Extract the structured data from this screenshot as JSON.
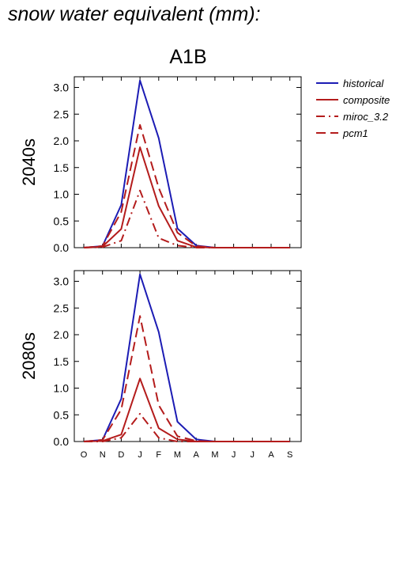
{
  "page": {
    "title": "snow water equivalent (mm):",
    "scenario": "A1B"
  },
  "colors": {
    "historical": "#1c1cb4",
    "scenario": "#b41c1c"
  },
  "chart_data": [
    {
      "type": "line",
      "panel": "2040s",
      "ylabel": "2040s",
      "ylim": [
        0,
        3.2
      ],
      "yticks": [
        "0.0",
        "0.5",
        "1.0",
        "1.5",
        "2.0",
        "2.5",
        "3.0"
      ],
      "x": [
        "O",
        "N",
        "D",
        "J",
        "F",
        "M",
        "A",
        "M",
        "J",
        "J",
        "A",
        "S"
      ],
      "show_x_tick_labels": false,
      "series": [
        {
          "name": "historical",
          "style": "solid",
          "color": "#1c1cb4",
          "values": [
            0.0,
            0.03,
            0.8,
            3.13,
            2.05,
            0.36,
            0.04,
            0.0,
            0.0,
            0.0,
            0.0,
            0.0
          ]
        },
        {
          "name": "composite",
          "style": "solid",
          "color": "#b41c1c",
          "values": [
            0.0,
            0.02,
            0.35,
            1.88,
            0.78,
            0.13,
            0.01,
            0.0,
            0.0,
            0.0,
            0.0,
            0.0
          ]
        },
        {
          "name": "miroc_3.2",
          "style": "dashdot",
          "color": "#b41c1c",
          "values": [
            0.0,
            0.01,
            0.13,
            1.07,
            0.18,
            0.04,
            0.0,
            0.0,
            0.0,
            0.0,
            0.0,
            0.0
          ]
        },
        {
          "name": "pcm1",
          "style": "dashed",
          "color": "#b41c1c",
          "values": [
            0.0,
            0.03,
            0.67,
            2.3,
            1.12,
            0.28,
            0.03,
            0.0,
            0.0,
            0.0,
            0.0,
            0.0
          ]
        }
      ]
    },
    {
      "type": "line",
      "panel": "2080s",
      "ylabel": "2080s",
      "ylim": [
        0,
        3.2
      ],
      "yticks": [
        "0.0",
        "0.5",
        "1.0",
        "1.5",
        "2.0",
        "2.5",
        "3.0"
      ],
      "x": [
        "O",
        "N",
        "D",
        "J",
        "F",
        "M",
        "A",
        "M",
        "J",
        "J",
        "A",
        "S"
      ],
      "show_x_tick_labels": true,
      "series": [
        {
          "name": "historical",
          "style": "solid",
          "color": "#1c1cb4",
          "values": [
            0.0,
            0.03,
            0.8,
            3.13,
            2.05,
            0.37,
            0.04,
            0.0,
            0.0,
            0.0,
            0.0,
            0.0
          ]
        },
        {
          "name": "composite",
          "style": "solid",
          "color": "#b41c1c",
          "values": [
            0.0,
            0.01,
            0.13,
            1.18,
            0.25,
            0.04,
            0.0,
            0.0,
            0.0,
            0.0,
            0.0,
            0.0
          ]
        },
        {
          "name": "miroc_3.2",
          "style": "dashdot",
          "color": "#b41c1c",
          "values": [
            0.0,
            0.0,
            0.07,
            0.52,
            0.07,
            0.0,
            0.0,
            0.0,
            0.0,
            0.0,
            0.0,
            0.0
          ]
        },
        {
          "name": "pcm1",
          "style": "dashed",
          "color": "#b41c1c",
          "values": [
            0.0,
            0.03,
            0.6,
            2.35,
            0.68,
            0.1,
            0.01,
            0.0,
            0.0,
            0.0,
            0.0,
            0.0
          ]
        }
      ]
    }
  ],
  "legend": {
    "placement": "right",
    "items": [
      {
        "label": "historical",
        "style": "solid",
        "color": "#1c1cb4"
      },
      {
        "label": "composite",
        "style": "solid",
        "color": "#b41c1c"
      },
      {
        "label": "miroc_3.2",
        "style": "dashdot",
        "color": "#b41c1c"
      },
      {
        "label": "pcm1",
        "style": "dashed",
        "color": "#b41c1c"
      }
    ]
  }
}
